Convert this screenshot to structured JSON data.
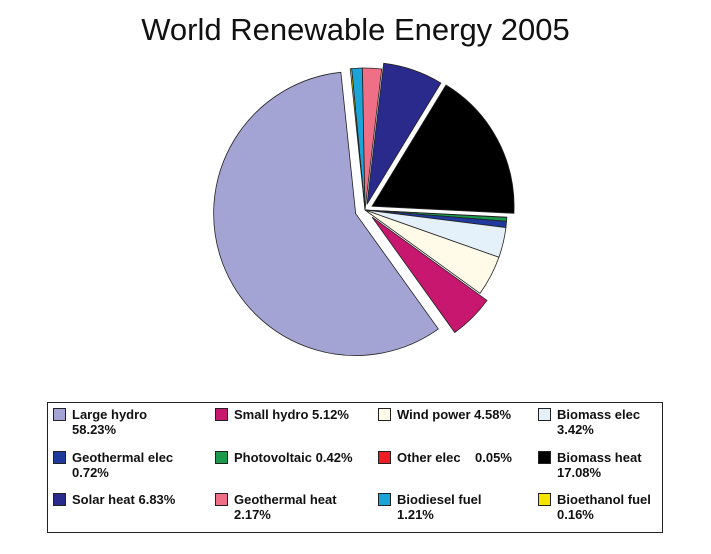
{
  "chart_data": {
    "type": "pie",
    "title": "World Renewable Energy 2005",
    "legend_position": "bottom",
    "slices": [
      {
        "label": "Large hydro",
        "value_text": "58.23%",
        "value": 58.23,
        "color": "#a3a4d4"
      },
      {
        "label": "Small hydro",
        "value_text": "5.12%",
        "value": 5.12,
        "color": "#c8176e"
      },
      {
        "label": "Wind power",
        "value_text": "4.58%",
        "value": 4.58,
        "color": "#fffbe8"
      },
      {
        "label": "Biomass elec",
        "value_text": "3.42%",
        "value": 3.42,
        "color": "#e4f1fb"
      },
      {
        "label": "Geothermal elec",
        "value_text": "0.72%",
        "value": 0.72,
        "color": "#1f3a9c"
      },
      {
        "label": "Photovoltaic",
        "value_text": "0.42%",
        "value": 0.42,
        "color": "#1a9a4a"
      },
      {
        "label": "Other elec",
        "value_text": "0.05%",
        "value": 0.05,
        "color": "#ee1c24"
      },
      {
        "label": "Biomass heat",
        "value_text": "17.08%",
        "value": 17.08,
        "color": "#000000"
      },
      {
        "label": "Solar heat",
        "value_text": "6.83%",
        "value": 6.83,
        "color": "#2a2a8c"
      },
      {
        "label": "Geothermal heat",
        "value_text": "2.17%",
        "value": 2.17,
        "color": "#ee6f86"
      },
      {
        "label": "Biodiesel fuel",
        "value_text": "1.21%",
        "value": 1.21,
        "color": "#1aa4d8"
      },
      {
        "label": "Bioethanol fuel",
        "value_text": "0.16%",
        "value": 0.16,
        "color": "#f5e400"
      }
    ]
  }
}
